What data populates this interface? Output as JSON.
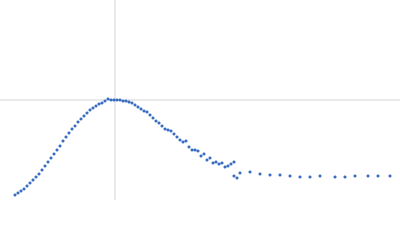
{
  "chart_data": {
    "type": "scatter",
    "color": "#3a6cc2",
    "xlim": [
      0,
      8
    ],
    "ylim": [
      0,
      2
    ],
    "xref": 2.3,
    "yref": 1,
    "x": [
      0.3,
      0.36,
      0.42,
      0.48,
      0.54,
      0.6,
      0.66,
      0.72,
      0.78,
      0.84,
      0.9,
      0.96,
      1.02,
      1.08,
      1.14,
      1.2,
      1.26,
      1.32,
      1.38,
      1.44,
      1.5,
      1.56,
      1.62,
      1.68,
      1.74,
      1.8,
      1.86,
      1.92,
      1.98,
      2.04,
      2.1,
      2.16,
      2.22,
      2.28,
      2.34,
      2.4,
      2.46,
      2.52,
      2.58,
      2.64,
      2.7,
      2.76,
      2.82,
      2.88,
      2.94,
      3,
      3.06,
      3.12,
      3.18,
      3.24,
      3.3,
      3.36,
      3.42,
      3.48,
      3.54,
      3.6,
      3.66,
      3.72,
      3.78,
      3.84,
      3.9,
      3.96,
      4.02,
      4.08,
      4.14,
      4.2,
      4.26,
      4.32,
      4.38,
      4.44,
      4.5,
      4.56,
      4.62,
      4.68,
      4.68,
      4.74,
      4.8,
      5,
      5.2,
      5.4,
      5.6,
      5.8,
      6,
      6.2,
      6.4,
      6.7,
      6.9,
      7.1,
      7.36,
      7.56,
      7.8
    ],
    "values": [
      0.05,
      0.07,
      0.09,
      0.11,
      0.14,
      0.17,
      0.2,
      0.23,
      0.26,
      0.3,
      0.34,
      0.38,
      0.42,
      0.46,
      0.5,
      0.54,
      0.59,
      0.63,
      0.67,
      0.71,
      0.74,
      0.78,
      0.81,
      0.84,
      0.87,
      0.9,
      0.92,
      0.94,
      0.96,
      0.97,
      0.99,
      1.01,
      1,
      1,
      1,
      1,
      0.99,
      0.99,
      0.98,
      0.97,
      0.95,
      0.93,
      0.91,
      0.89,
      0.88,
      0.85,
      0.82,
      0.79,
      0.77,
      0.74,
      0.71,
      0.7,
      0.69,
      0.66,
      0.63,
      0.6,
      0.58,
      0.59,
      0.53,
      0.5,
      0.5,
      0.49,
      0.44,
      0.46,
      0.4,
      0.42,
      0.37,
      0.38,
      0.36,
      0.37,
      0.33,
      0.34,
      0.36,
      0.38,
      0.24,
      0.22,
      0.27,
      0.28,
      0.26,
      0.25,
      0.25,
      0.24,
      0.23,
      0.23,
      0.24,
      0.23,
      0.23,
      0.24,
      0.24,
      0.24,
      0.24
    ]
  }
}
